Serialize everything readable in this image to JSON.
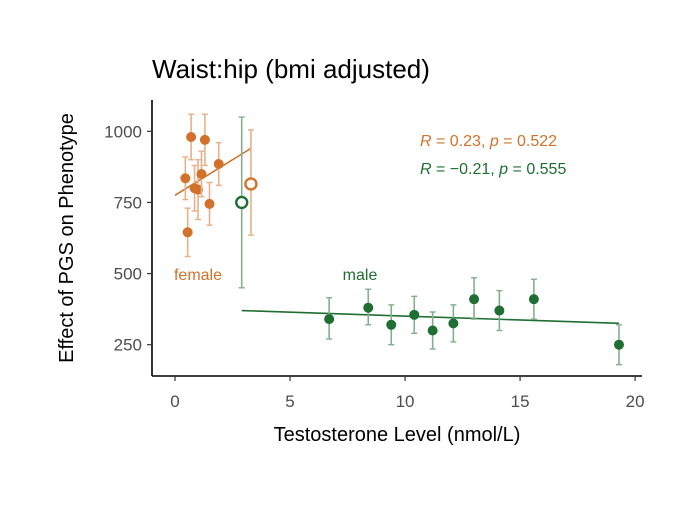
{
  "chart_data": {
    "type": "scatter",
    "title": "Waist:hip (bmi adjusted)",
    "xlabel": "Testosterone Level (nmol/L)",
    "ylabel": "Effect of PGS on Phenotype",
    "xlim": [
      -1,
      20.3
    ],
    "ylim": [
      140,
      1110
    ],
    "xticks": [
      0,
      5,
      10,
      15,
      20
    ],
    "yticks": [
      250,
      500,
      750,
      1000
    ],
    "grid": false,
    "legend": "none",
    "series": [
      {
        "name": "female",
        "color": "#d2722a",
        "points": [
          {
            "x": 0.45,
            "y": 835,
            "lo": 760,
            "hi": 910
          },
          {
            "x": 0.55,
            "y": 645,
            "lo": 560,
            "hi": 730
          },
          {
            "x": 0.7,
            "y": 980,
            "lo": 900,
            "hi": 1060
          },
          {
            "x": 0.85,
            "y": 800,
            "lo": 720,
            "hi": 880
          },
          {
            "x": 1.0,
            "y": 795,
            "lo": 690,
            "hi": 900
          },
          {
            "x": 1.15,
            "y": 850,
            "lo": 770,
            "hi": 930
          },
          {
            "x": 1.3,
            "y": 970,
            "lo": 880,
            "hi": 1060
          },
          {
            "x": 1.5,
            "y": 745,
            "lo": 670,
            "hi": 820
          },
          {
            "x": 1.9,
            "y": 885,
            "lo": 810,
            "hi": 960
          }
        ],
        "outlier": {
          "x": 3.3,
          "y": 815,
          "lo": 635,
          "hi": 1005
        },
        "fit": {
          "x": [
            0,
            3.3
          ],
          "y": [
            775,
            940
          ]
        },
        "stat": {
          "r_label": "R",
          "r": "0.23",
          "p_label": "p",
          "p": "0.522"
        }
      },
      {
        "name": "male",
        "color": "#1f6e32",
        "points": [
          {
            "x": 6.7,
            "y": 340,
            "lo": 270,
            "hi": 415
          },
          {
            "x": 8.4,
            "y": 380,
            "lo": 320,
            "hi": 445
          },
          {
            "x": 9.4,
            "y": 320,
            "lo": 250,
            "hi": 390
          },
          {
            "x": 10.4,
            "y": 355,
            "lo": 290,
            "hi": 420
          },
          {
            "x": 11.2,
            "y": 300,
            "lo": 235,
            "hi": 365
          },
          {
            "x": 12.1,
            "y": 325,
            "lo": 260,
            "hi": 390
          },
          {
            "x": 13.0,
            "y": 410,
            "lo": 340,
            "hi": 485
          },
          {
            "x": 14.1,
            "y": 370,
            "lo": 300,
            "hi": 440
          },
          {
            "x": 15.6,
            "y": 410,
            "lo": 340,
            "hi": 480
          },
          {
            "x": 19.3,
            "y": 250,
            "lo": 180,
            "hi": 320
          }
        ],
        "outlier": {
          "x": 2.9,
          "y": 750,
          "lo": 450,
          "hi": 1050
        },
        "fit": {
          "x": [
            2.9,
            19.3
          ],
          "y": [
            370,
            325
          ]
        },
        "stat": {
          "r_label": "R",
          "r": "−0.21",
          "p_label": "p",
          "p": "0.555"
        }
      }
    ]
  }
}
